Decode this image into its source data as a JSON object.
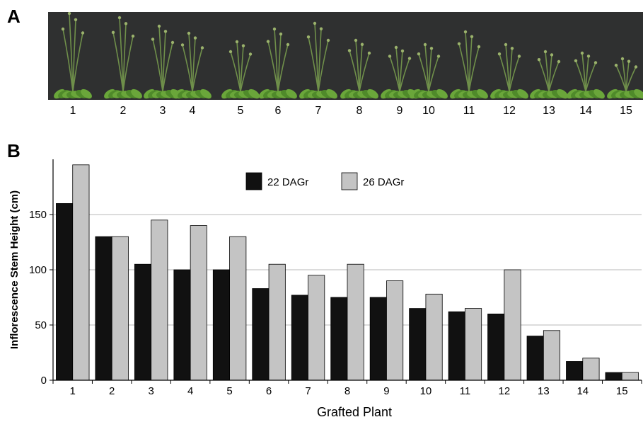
{
  "panel_a": {
    "letter": "A",
    "plant_labels": [
      "1",
      "2",
      "3",
      "4",
      "5",
      "6",
      "7",
      "8",
      "9",
      "10",
      "11",
      "12",
      "13",
      "14",
      "15"
    ]
  },
  "panel_b": {
    "letter": "B"
  },
  "colors": {
    "series_22": "#111111",
    "series_26": "#c4c4c4",
    "grid": "#b8b8b8",
    "photo_background": "#2f3030",
    "foliage": "#4f8a2a"
  },
  "chart_data": {
    "type": "bar",
    "title": "",
    "xlabel": "Grafted Plant",
    "ylabel": "Inflorescence Stem Height (cm)",
    "categories": [
      "1",
      "2",
      "3",
      "4",
      "5",
      "6",
      "7",
      "8",
      "9",
      "10",
      "11",
      "12",
      "13",
      "14",
      "15"
    ],
    "series": [
      {
        "name": "22 DAGr",
        "values": [
          160,
          130,
          105,
          100,
          100,
          83,
          77,
          75,
          75,
          65,
          62,
          60,
          40,
          17,
          7
        ]
      },
      {
        "name": "26 DAGr",
        "values": [
          195,
          130,
          145,
          140,
          130,
          105,
          95,
          105,
          90,
          78,
          65,
          100,
          45,
          20,
          7
        ]
      }
    ],
    "ylim": [
      0,
      200
    ],
    "yticks": [
      0,
      50,
      100,
      150
    ],
    "grid": true,
    "legend_position": "top-center"
  }
}
